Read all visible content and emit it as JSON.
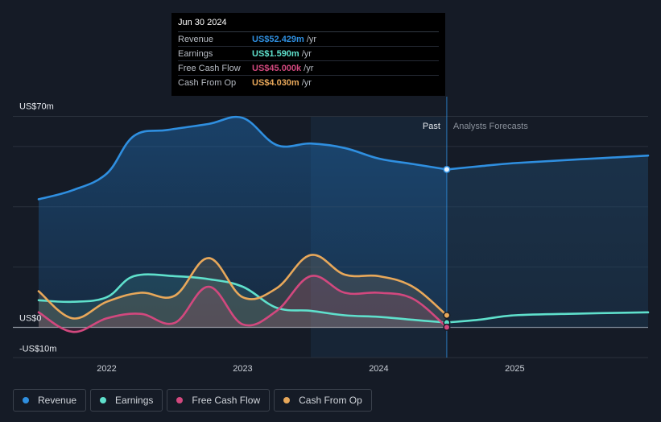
{
  "tooltip": {
    "date": "Jun 30 2024",
    "rows": [
      {
        "label": "Revenue",
        "value": "US$52.429m",
        "unit": "/yr",
        "color": "#2f8fe0"
      },
      {
        "label": "Earnings",
        "value": "US$1.590m",
        "unit": "/yr",
        "color": "#5fe0cc"
      },
      {
        "label": "Free Cash Flow",
        "value": "US$45.000k",
        "unit": "/yr",
        "color": "#d2487e"
      },
      {
        "label": "Cash From Op",
        "value": "US$4.030m",
        "unit": "/yr",
        "color": "#e8a85a"
      }
    ]
  },
  "legend": [
    {
      "label": "Revenue",
      "color": "#2f8fe0"
    },
    {
      "label": "Earnings",
      "color": "#5fe0cc"
    },
    {
      "label": "Free Cash Flow",
      "color": "#d2487e"
    },
    {
      "label": "Cash From Op",
      "color": "#e8a85a"
    }
  ],
  "chart_data": {
    "type": "line",
    "title": "",
    "ylim": [
      -10,
      70
    ],
    "xlim": [
      2021.5,
      2025.98
    ],
    "y_tick_labels": [
      {
        "value": 70,
        "label": "US$70m"
      },
      {
        "value": 0,
        "label": "US$0"
      },
      {
        "value": -10,
        "label": "-US$10m"
      }
    ],
    "x_ticks": [
      {
        "value": 2022,
        "label": "2022"
      },
      {
        "value": 2023,
        "label": "2023"
      },
      {
        "value": 2024,
        "label": "2024"
      },
      {
        "value": 2025,
        "label": "2025"
      }
    ],
    "past_label": "Past",
    "forecast_label": "Analysts Forecasts",
    "past_divider_x": 2024.5,
    "highlight_start_x": 2023.5,
    "series": [
      {
        "name": "Revenue",
        "color": "#2f8fe0",
        "x": [
          2021.5,
          2021.75,
          2022.0,
          2022.2,
          2022.45,
          2022.75,
          2023.0,
          2023.25,
          2023.5,
          2023.75,
          2024.0,
          2024.25,
          2024.5
        ],
        "y": [
          42.5,
          45.5,
          51,
          63.5,
          65.5,
          67.5,
          69.5,
          60.5,
          61,
          59.5,
          56,
          54.2,
          52.4
        ]
      },
      {
        "name": "Revenue Forecast",
        "color": "#2f8fe0",
        "x": [
          2024.5,
          2024.75,
          2025.0,
          2025.5,
          2025.98
        ],
        "y": [
          52.4,
          53.5,
          54.5,
          55.8,
          57
        ]
      },
      {
        "name": "Earnings",
        "color": "#5fe0cc",
        "x": [
          2021.5,
          2021.75,
          2022.0,
          2022.2,
          2022.5,
          2022.75,
          2023.0,
          2023.25,
          2023.5,
          2023.75,
          2024.0,
          2024.25,
          2024.5
        ],
        "y": [
          9,
          8.5,
          10,
          17,
          17,
          16,
          13.5,
          6.5,
          5.5,
          4,
          3.5,
          2.5,
          1.6
        ]
      },
      {
        "name": "Earnings Forecast",
        "color": "#5fe0cc",
        "x": [
          2024.5,
          2024.75,
          2025.0,
          2025.5,
          2025.98
        ],
        "y": [
          1.6,
          2.6,
          4,
          4.6,
          5
        ]
      },
      {
        "name": "Free Cash Flow",
        "color": "#d2487e",
        "x": [
          2021.5,
          2021.75,
          2022.0,
          2022.25,
          2022.5,
          2022.75,
          2023.0,
          2023.25,
          2023.5,
          2023.75,
          2024.0,
          2024.25,
          2024.5
        ],
        "y": [
          5,
          -1.5,
          3,
          4.5,
          1.5,
          13.5,
          1,
          5.5,
          17,
          11.5,
          11.5,
          9.5,
          0.05
        ]
      },
      {
        "name": "Cash From Op",
        "color": "#e8a85a",
        "x": [
          2021.5,
          2021.75,
          2022.0,
          2022.25,
          2022.5,
          2022.75,
          2023.0,
          2023.25,
          2023.5,
          2023.75,
          2024.0,
          2024.25,
          2024.5
        ],
        "y": [
          12,
          3,
          8.5,
          11.5,
          10.5,
          23,
          10,
          13,
          24,
          17.5,
          17,
          13.5,
          4
        ]
      }
    ]
  }
}
